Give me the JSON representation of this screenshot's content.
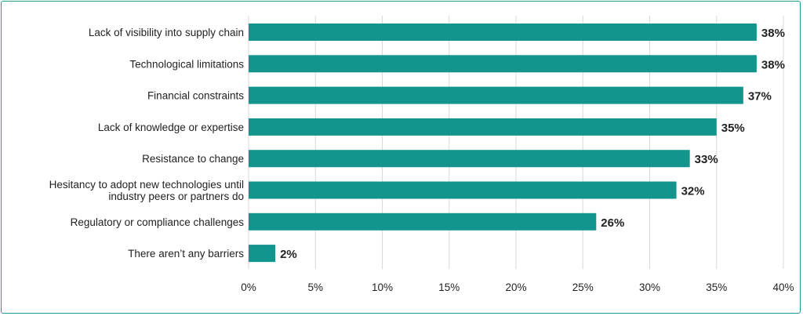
{
  "chart_data": {
    "type": "bar",
    "orientation": "horizontal",
    "categories": [
      "Lack of visibility into supply chain",
      "Technological limitations",
      "Financial constraints",
      "Lack of knowledge or expertise",
      "Resistance to change",
      "Hesitancy to adopt new technologies until industry peers or partners do",
      "Regulatory or compliance challenges",
      "There aren’t any barriers"
    ],
    "category_lines": [
      [
        "Lack of visibility into supply chain"
      ],
      [
        "Technological limitations"
      ],
      [
        "Financial constraints"
      ],
      [
        "Lack of knowledge or expertise"
      ],
      [
        "Resistance to change"
      ],
      [
        "Hesitancy to adopt new technologies until",
        "industry peers or partners do"
      ],
      [
        "Regulatory or compliance challenges"
      ],
      [
        "There aren’t any barriers"
      ]
    ],
    "values": [
      38,
      38,
      37,
      35,
      33,
      32,
      26,
      2
    ],
    "value_labels": [
      "38%",
      "38%",
      "37%",
      "35%",
      "33%",
      "32%",
      "26%",
      "2%"
    ],
    "xlim": [
      0,
      40
    ],
    "xticks": [
      0,
      5,
      10,
      15,
      20,
      25,
      30,
      35,
      40
    ],
    "xtick_labels": [
      "0%",
      "5%",
      "10%",
      "15%",
      "20%",
      "25%",
      "30%",
      "35%",
      "40%"
    ],
    "grid": true,
    "title": "",
    "xlabel": "",
    "ylabel": "",
    "bar_color": "#13948d",
    "border_color": "#1a9b94"
  }
}
